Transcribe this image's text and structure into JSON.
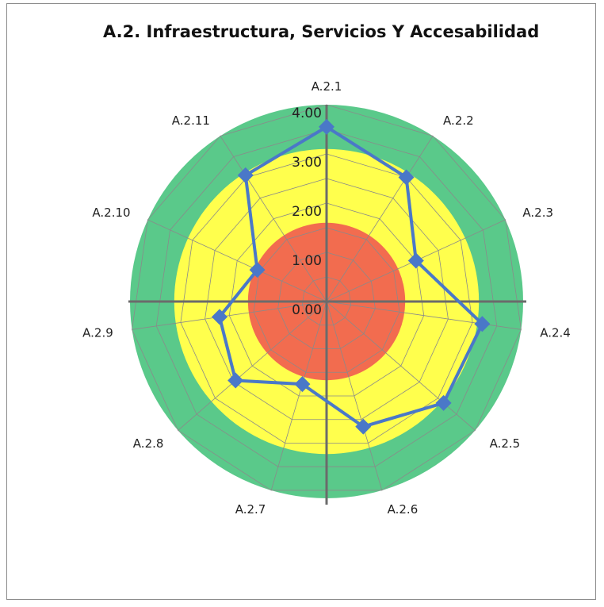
{
  "chart_data": {
    "type": "radar",
    "title": "A.2. Infraestructura, Servicios Y Accesabilidad",
    "categories": [
      "A.2.1",
      "A.2.2",
      "A.2.3",
      "A.2.4",
      "A.2.5",
      "A.2.6",
      "A.2.7",
      "A.2.8",
      "A.2.9",
      "A.2.10",
      "A.2.11"
    ],
    "series": [
      {
        "values": [
          3.55,
          3.0,
          2.0,
          3.2,
          3.15,
          2.65,
          1.75,
          2.45,
          2.2,
          1.55,
          3.05
        ]
      }
    ],
    "radial_ticks": [
      "0.00",
      "1.00",
      "2.00",
      "3.00",
      "4.00"
    ],
    "rlim": [
      0,
      4
    ],
    "bands": [
      {
        "from": 0,
        "to": 1.6,
        "color": "#f26c4f"
      },
      {
        "from": 1.6,
        "to": 3.1,
        "color": "#ffff4d"
      },
      {
        "from": 3.1,
        "to": 4.0,
        "color": "#5ac98a"
      }
    ],
    "line_color": "#4a78c8",
    "marker": "diamond",
    "legend": "none"
  }
}
